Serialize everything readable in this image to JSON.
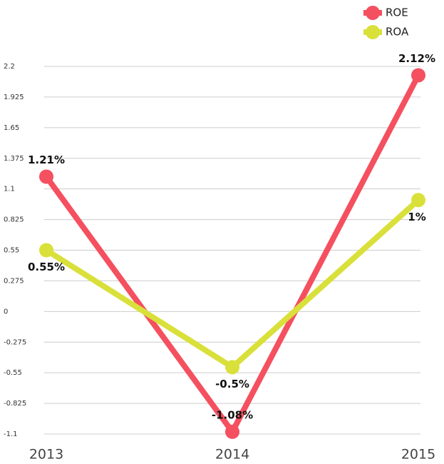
{
  "chart_data": {
    "type": "line",
    "categories": [
      "2013",
      "2014",
      "2015"
    ],
    "series": [
      {
        "name": "ROE",
        "color": "#f4505f",
        "values": [
          1.21,
          -1.08,
          2.12
        ],
        "value_labels": [
          "1.21%",
          "-1.08%",
          "2.12%"
        ]
      },
      {
        "name": "ROA",
        "color": "#d9e03a",
        "values": [
          0.55,
          -0.5,
          1
        ],
        "value_labels": [
          "0.55%",
          "-0.5%",
          "1%"
        ]
      }
    ],
    "ylim": [
      -1.1,
      2.2
    ],
    "yticks": [
      2.2,
      1.925,
      1.65,
      1.375,
      1.1,
      0.825,
      0.55,
      0.275,
      0,
      -0.275,
      -0.55,
      -0.825,
      -1.1
    ],
    "grid": true,
    "legend": "top-right"
  }
}
